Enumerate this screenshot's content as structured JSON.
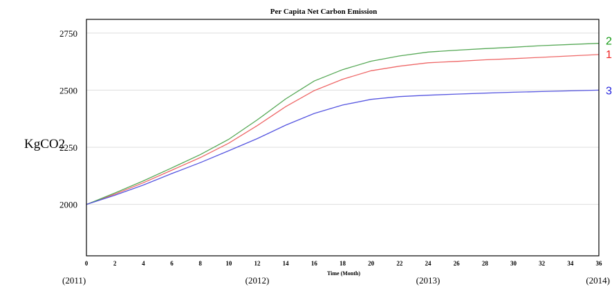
{
  "chart_data": {
    "type": "line",
    "title": "Per Capita Net Carbon Emission",
    "xlabel": "Time (Month)",
    "ylabel": "KgCO2",
    "xlim": [
      0,
      36
    ],
    "ylim": [
      1775,
      2810
    ],
    "x_ticks": [
      0,
      2,
      4,
      6,
      8,
      10,
      12,
      14,
      16,
      18,
      20,
      22,
      24,
      26,
      28,
      30,
      32,
      34,
      36
    ],
    "x_tick_labels": [
      "0",
      "2",
      "4",
      "6",
      "8",
      "10",
      "12",
      "14",
      "16",
      "18",
      "20",
      "22",
      "24",
      "26",
      "28",
      "30",
      "32",
      "34",
      "36"
    ],
    "y_ticks": [
      2000,
      2250,
      2500,
      2750
    ],
    "y_tick_labels": [
      "2000",
      "2250",
      "2500",
      "2750"
    ],
    "year_labels": [
      {
        "x": 0,
        "label": "(2011)"
      },
      {
        "x": 12,
        "label": "(2012)"
      },
      {
        "x": 24,
        "label": "(2013)"
      },
      {
        "x": 36,
        "label": "(2014)"
      }
    ],
    "grid": true,
    "x": [
      0,
      2,
      4,
      6,
      8,
      10,
      12,
      14,
      16,
      18,
      20,
      22,
      24,
      26,
      28,
      30,
      32,
      34,
      36
    ],
    "series": [
      {
        "name": "1",
        "color": "#ee6666",
        "values": [
          2000,
          2045,
          2095,
          2150,
          2205,
          2268,
          2345,
          2428,
          2498,
          2548,
          2585,
          2605,
          2620,
          2626,
          2633,
          2638,
          2644,
          2650,
          2656
        ]
      },
      {
        "name": "2",
        "color": "#55a855",
        "values": [
          2000,
          2050,
          2103,
          2160,
          2218,
          2285,
          2370,
          2462,
          2540,
          2590,
          2627,
          2650,
          2667,
          2675,
          2682,
          2688,
          2695,
          2700,
          2705
        ]
      },
      {
        "name": "3",
        "color": "#5555e0",
        "values": [
          2000,
          2040,
          2085,
          2135,
          2183,
          2235,
          2288,
          2347,
          2398,
          2435,
          2460,
          2472,
          2478,
          2483,
          2487,
          2491,
          2494,
          2497,
          2500
        ]
      }
    ],
    "series_label_colors": [
      "#ee2222",
      "#119911",
      "#2222dd"
    ]
  }
}
